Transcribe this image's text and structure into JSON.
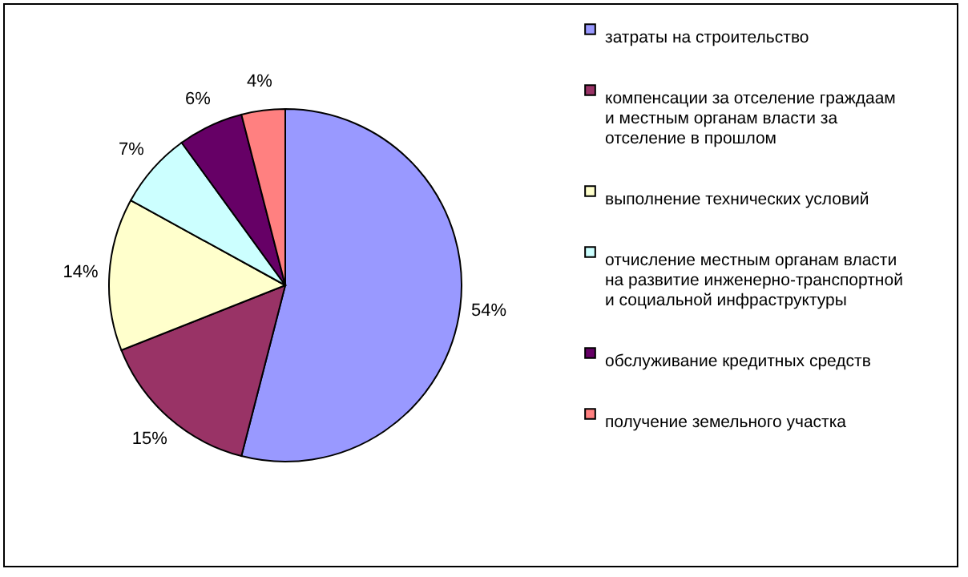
{
  "chart_data": {
    "type": "pie",
    "categories": [
      "затраты на строительство",
      "компенсации за отселение граждаам и  местным органам власти за отселение в прошлом",
      "выполнение технических условий",
      "отчисление местным органам власти на развитие инженерно-транспортной и социальной инфраструктуры",
      "обслуживание кредитных средств",
      "получение земельного участка"
    ],
    "values": [
      54,
      15,
      14,
      7,
      6,
      4
    ],
    "value_labels": [
      "54%",
      "15%",
      "14%",
      "7%",
      "6%",
      "4%"
    ],
    "colors": [
      "#9999ff",
      "#993366",
      "#ffffcc",
      "#ccffff",
      "#660066",
      "#ff8080"
    ],
    "legend": "right"
  }
}
